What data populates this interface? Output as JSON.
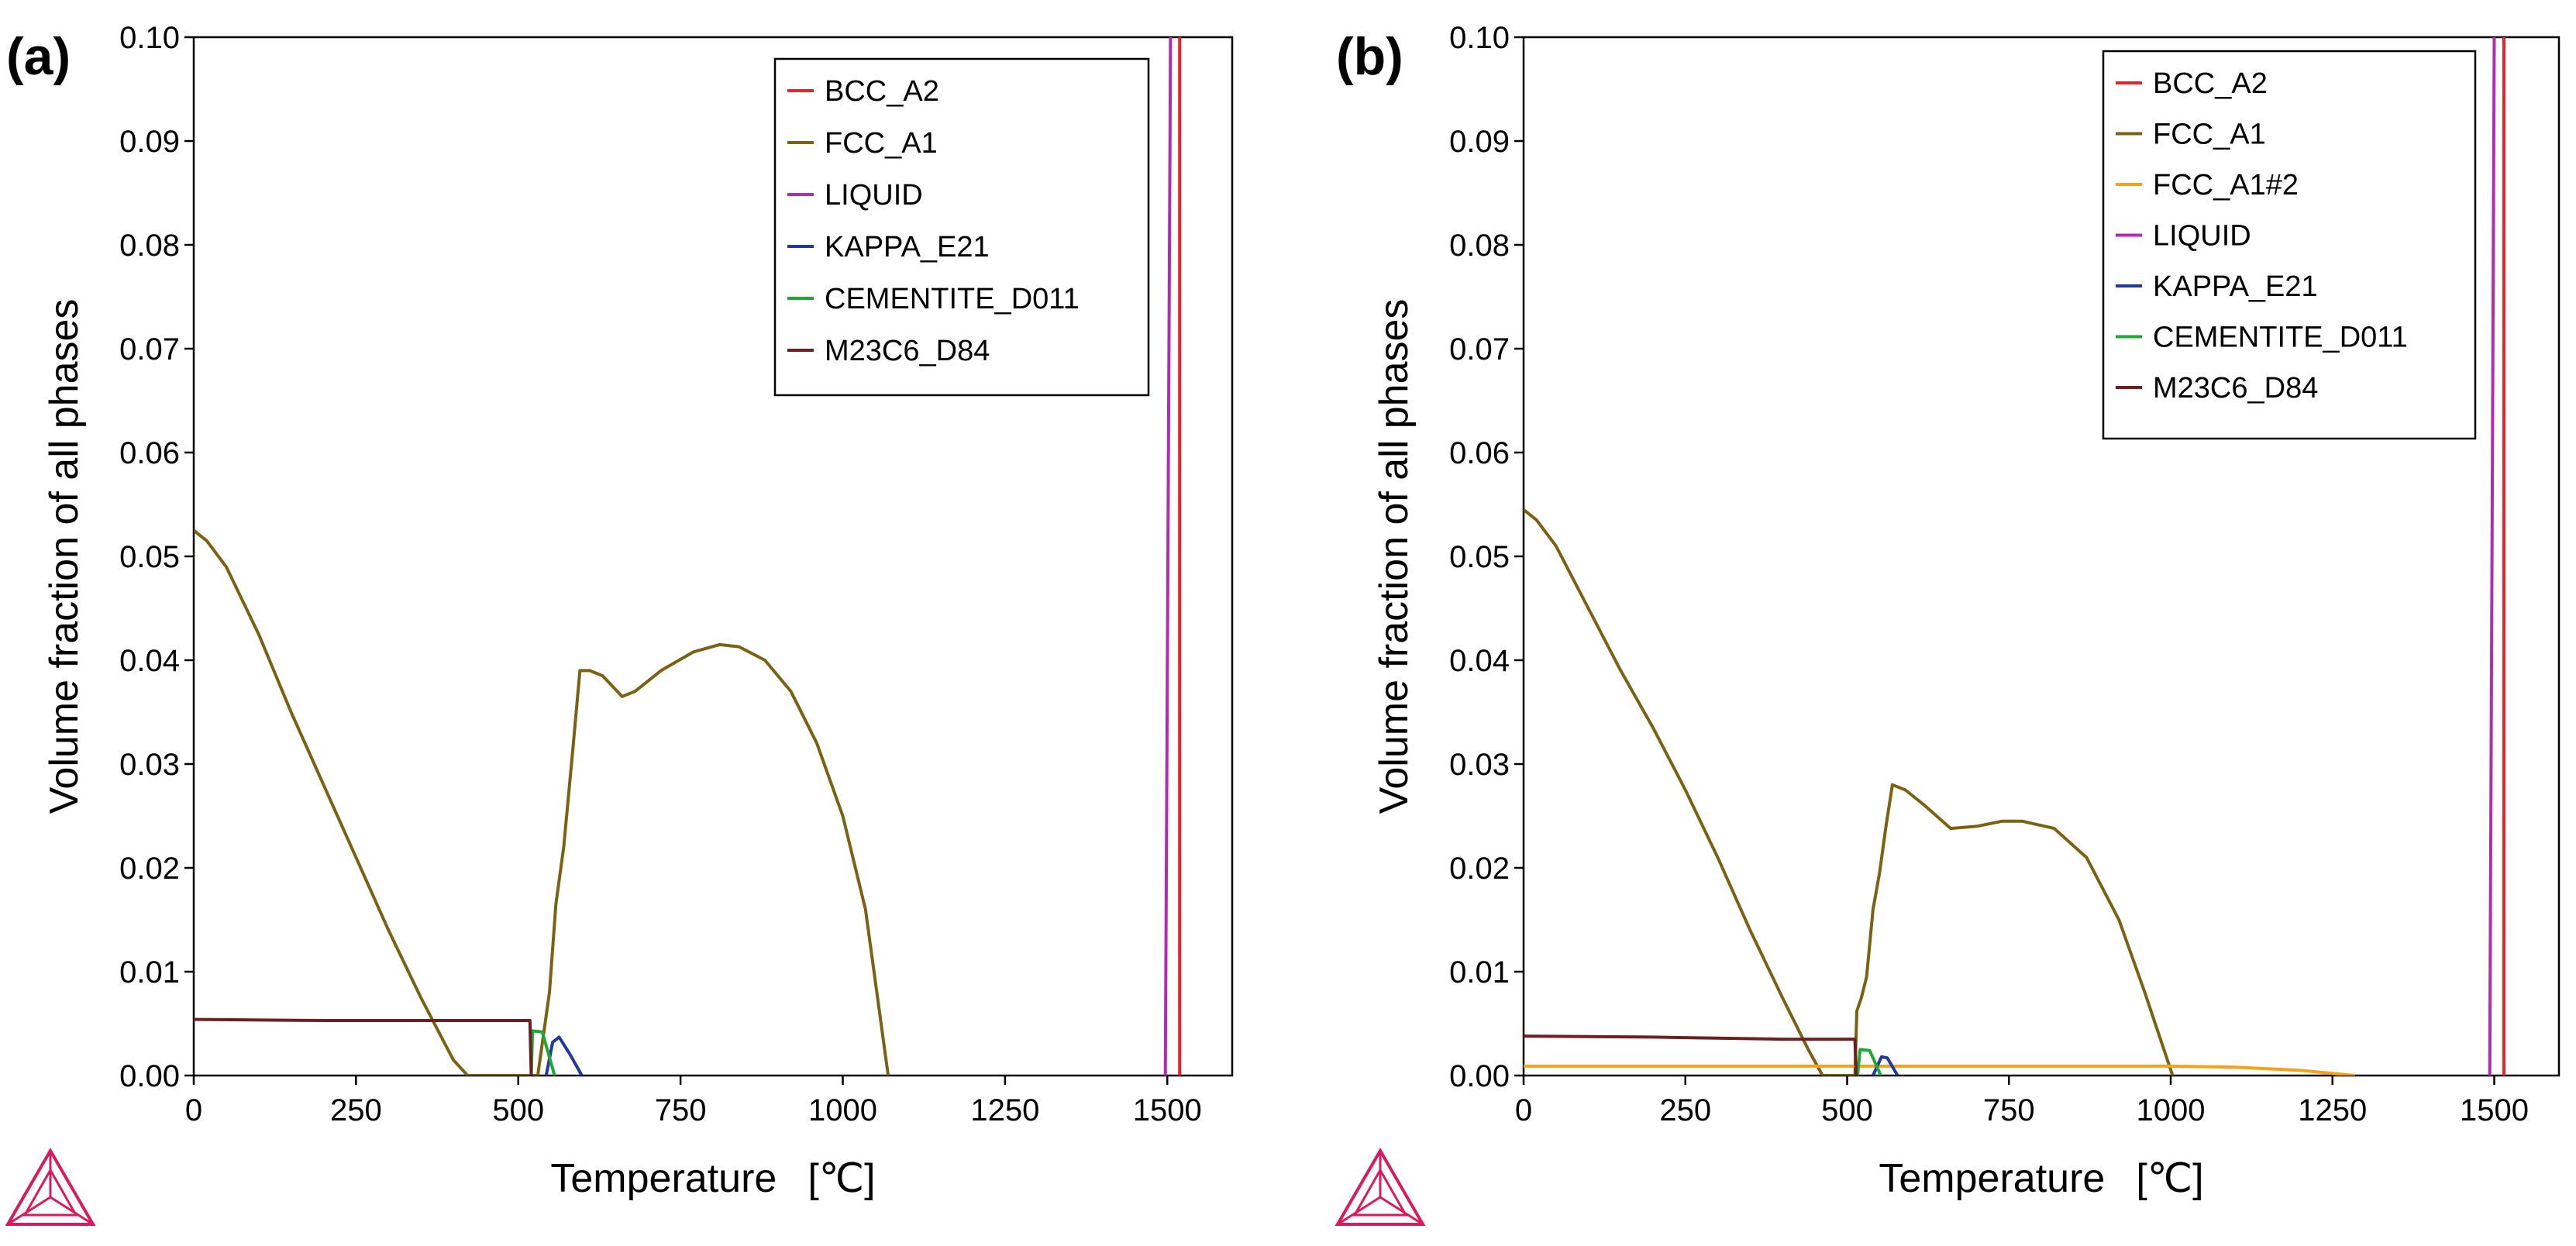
{
  "chart_data": [
    {
      "type": "line",
      "panel_label": "(a)",
      "xlabel": "Temperature",
      "xunit": "[℃]",
      "ylabel": "Volume fraction of all phases",
      "xlim": [
        0,
        1600
      ],
      "ylim": [
        0,
        0.1
      ],
      "xticks": [
        0,
        250,
        500,
        750,
        1000,
        1250,
        1500
      ],
      "yticks": [
        "0.00",
        "0.01",
        "0.02",
        "0.03",
        "0.04",
        "0.05",
        "0.06",
        "0.07",
        "0.08",
        "0.09",
        "0.10"
      ],
      "legend_position": "top-right",
      "series": [
        {
          "name": "BCC_A2",
          "color": "#e8232a",
          "points": [
            [
              1519,
              0
            ],
            [
              1519,
              0.1
            ]
          ]
        },
        {
          "name": "FCC_A1",
          "color": "#7a6212",
          "points": [
            [
              0,
              0.0525
            ],
            [
              20,
              0.0515
            ],
            [
              50,
              0.049
            ],
            [
              100,
              0.0425
            ],
            [
              150,
              0.035
            ],
            [
              200,
              0.028
            ],
            [
              250,
              0.021
            ],
            [
              300,
              0.014
            ],
            [
              350,
              0.0075
            ],
            [
              400,
              0.0015
            ],
            [
              422,
              0
            ],
            [
              530,
              0
            ],
            [
              548,
              0.008
            ],
            [
              558,
              0.0165
            ],
            [
              570,
              0.022
            ],
            [
              585,
              0.032
            ],
            [
              595,
              0.039
            ],
            [
              610,
              0.039
            ],
            [
              630,
              0.0385
            ],
            [
              660,
              0.0365
            ],
            [
              680,
              0.037
            ],
            [
              720,
              0.039
            ],
            [
              770,
              0.0408
            ],
            [
              810,
              0.0415
            ],
            [
              840,
              0.0413
            ],
            [
              880,
              0.04
            ],
            [
              920,
              0.037
            ],
            [
              960,
              0.032
            ],
            [
              1000,
              0.025
            ],
            [
              1035,
              0.016
            ],
            [
              1070,
              0
            ]
          ]
        },
        {
          "name": "LIQUID",
          "color": "#b02cb0",
          "points": [
            [
              1497,
              0
            ],
            [
              1505,
              0.1
            ]
          ]
        },
        {
          "name": "KAPPA_E21",
          "color": "#1f3a9a",
          "points": [
            [
              543,
              0
            ],
            [
              553,
              0.0032
            ],
            [
              563,
              0.0037
            ],
            [
              580,
              0.002
            ],
            [
              598,
              0
            ]
          ]
        },
        {
          "name": "CEMENTITE_D011",
          "color": "#1fa836",
          "points": [
            [
              520,
              0
            ],
            [
              522,
              0.0043
            ],
            [
              537,
              0.0042
            ],
            [
              556,
              0
            ]
          ]
        },
        {
          "name": "M23C6_D84",
          "color": "#6e1f1f",
          "points": [
            [
              0,
              0.0054
            ],
            [
              200,
              0.0053
            ],
            [
              400,
              0.0053
            ],
            [
              518,
              0.0053
            ],
            [
              520,
              0
            ]
          ]
        }
      ]
    },
    {
      "type": "line",
      "panel_label": "(b)",
      "xlabel": "Temperature",
      "xunit": "[℃]",
      "ylabel": "Volume fraction of all phases",
      "xlim": [
        0,
        1600
      ],
      "ylim": [
        0,
        0.1
      ],
      "xticks": [
        0,
        250,
        500,
        750,
        1000,
        1250,
        1500
      ],
      "yticks": [
        "0.00",
        "0.01",
        "0.02",
        "0.03",
        "0.04",
        "0.05",
        "0.06",
        "0.07",
        "0.08",
        "0.09",
        "0.10"
      ],
      "legend_position": "top-right",
      "series": [
        {
          "name": "BCC_A2",
          "color": "#e8232a",
          "points": [
            [
              1515,
              0
            ],
            [
              1515,
              0.1
            ]
          ]
        },
        {
          "name": "FCC_A1",
          "color": "#7a6212",
          "points": [
            [
              0,
              0.0545
            ],
            [
              20,
              0.0535
            ],
            [
              50,
              0.051
            ],
            [
              100,
              0.045
            ],
            [
              150,
              0.039
            ],
            [
              200,
              0.0335
            ],
            [
              250,
              0.0275
            ],
            [
              300,
              0.021
            ],
            [
              350,
              0.014
            ],
            [
              400,
              0.0075
            ],
            [
              440,
              0.0025
            ],
            [
              462,
              0
            ],
            [
              512,
              0
            ],
            [
              515,
              0.0062
            ],
            [
              522,
              0.0075
            ],
            [
              530,
              0.0095
            ],
            [
              540,
              0.016
            ],
            [
              550,
              0.0195
            ],
            [
              560,
              0.024
            ],
            [
              570,
              0.028
            ],
            [
              590,
              0.0275
            ],
            [
              620,
              0.026
            ],
            [
              660,
              0.0238
            ],
            [
              700,
              0.024
            ],
            [
              740,
              0.0245
            ],
            [
              770,
              0.0245
            ],
            [
              820,
              0.0238
            ],
            [
              870,
              0.021
            ],
            [
              920,
              0.015
            ],
            [
              960,
              0.008
            ],
            [
              1003,
              0
            ]
          ]
        },
        {
          "name": "FCC_A1#2",
          "color": "#f5a218",
          "points": [
            [
              0,
              0.0009
            ],
            [
              500,
              0.0009
            ],
            [
              900,
              0.0009
            ],
            [
              1000,
              0.0009
            ],
            [
              1100,
              0.0008
            ],
            [
              1200,
              0.0005
            ],
            [
              1250,
              0.0002
            ],
            [
              1285,
              0
            ]
          ]
        },
        {
          "name": "LIQUID",
          "color": "#b02cb0",
          "points": [
            [
              1493,
              0
            ],
            [
              1500,
              0.1
            ]
          ]
        },
        {
          "name": "KAPPA_E21",
          "color": "#1f3a9a",
          "points": [
            [
              540,
              0
            ],
            [
              553,
              0.0018
            ],
            [
              562,
              0.0017
            ],
            [
              578,
              0
            ]
          ]
        },
        {
          "name": "CEMENTITE_D011",
          "color": "#1fa836",
          "points": [
            [
              516,
              0
            ],
            [
              520,
              0.0025
            ],
            [
              535,
              0.0024
            ],
            [
              552,
              0
            ]
          ]
        },
        {
          "name": "M23C6_D84",
          "color": "#6e1f1f",
          "points": [
            [
              0,
              0.0038
            ],
            [
              200,
              0.0037
            ],
            [
              400,
              0.0035
            ],
            [
              512,
              0.0035
            ],
            [
              514,
              0
            ]
          ]
        }
      ]
    }
  ]
}
